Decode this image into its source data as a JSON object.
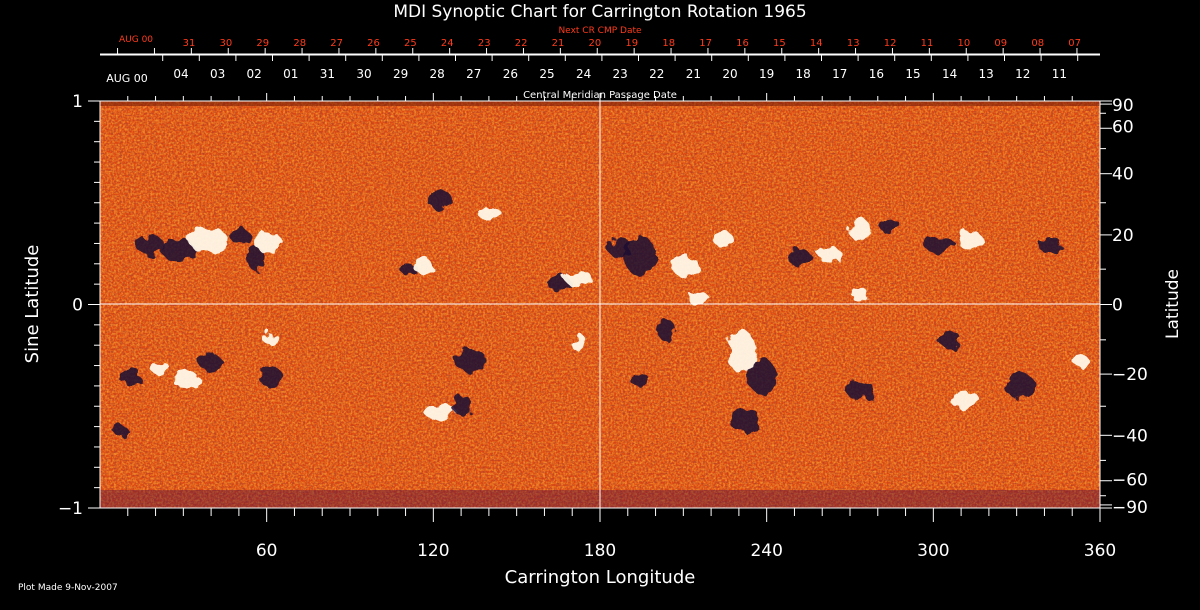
{
  "chart_data": {
    "type": "heatmap",
    "title": "MDI Synoptic Chart for Carrington Rotation 1965",
    "xlabel": "Carrington Longitude",
    "ylabel_left": "Sine Latitude",
    "ylabel_right": "Latitude",
    "xlim": [
      0,
      360
    ],
    "ylim": [
      -1,
      1
    ],
    "x_ticks": [
      "60",
      "120",
      "180",
      "240",
      "300",
      "360"
    ],
    "x_tick_values": [
      60,
      120,
      180,
      240,
      300,
      360
    ],
    "y_left_ticks": [
      "1",
      "0",
      "−1"
    ],
    "y_left_tick_values": [
      1,
      0,
      -1
    ],
    "y_right_ticks": [
      "90",
      "60",
      "40",
      "20",
      "0",
      "−20",
      "−40",
      "−60",
      "−90"
    ],
    "y_right_tick_values": [
      90,
      60,
      40,
      20,
      0,
      -20,
      -40,
      -60,
      -90
    ],
    "next_cr_label": "Next CR CMP Date",
    "next_cr_start_label": "AUG 00",
    "next_cr_dates": [
      "31",
      "30",
      "29",
      "28",
      "27",
      "26",
      "25",
      "24",
      "23",
      "22",
      "21",
      "20",
      "19",
      "18",
      "17",
      "16",
      "15",
      "14",
      "13",
      "12",
      "11",
      "10",
      "09",
      "08",
      "07"
    ],
    "cmp_label": "Central Meridian Passage Date",
    "cmp_start_label": "AUG 00",
    "cmp_dates": [
      "04",
      "03",
      "02",
      "01",
      "31",
      "30",
      "29",
      "28",
      "27",
      "26",
      "25",
      "24",
      "23",
      "22",
      "21",
      "20",
      "19",
      "18",
      "17",
      "16",
      "15",
      "14",
      "13",
      "12",
      "11"
    ],
    "grid_lines": {
      "longitude": 180,
      "sine_latitude": 0
    },
    "colors": {
      "background": "#000000",
      "field_base": "#e8470f",
      "positive_polarity": "#ffffff",
      "negative_polarity": "#1a0a33",
      "date_axis_text": "#ff3a1a",
      "axis": "#ffffff"
    },
    "footer": "Plot Made  9-Nov-2007"
  }
}
